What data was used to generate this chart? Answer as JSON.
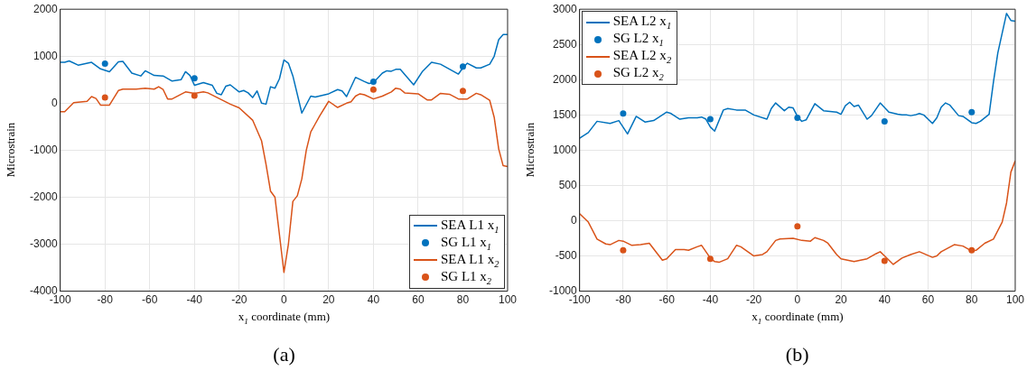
{
  "chart_data": [
    {
      "type": "line",
      "xlabel": "x$_{1}$ coordinate (mm)",
      "ylabel": "Microstrain",
      "annotations": [
        "(a)"
      ],
      "xlim": [
        -100,
        100
      ],
      "xticks": [
        -100,
        -80,
        -60,
        -40,
        -20,
        0,
        20,
        40,
        60,
        80,
        100
      ],
      "ylim": [
        -4000,
        2000
      ],
      "yticks": [
        -4000,
        -3000,
        -2000,
        -1000,
        0,
        1000,
        2000
      ],
      "grid": true,
      "legend": "bottom right",
      "series": [
        {
          "name": "SEA L1 x$_{1}$",
          "color": "#0072bd",
          "x": [
            -100,
            -98,
            -96,
            -92,
            -86,
            -82,
            -78,
            -74,
            -72,
            -68,
            -64,
            -62,
            -58,
            -54,
            -50,
            -46,
            -44,
            -42,
            -40,
            -36,
            -32,
            -30,
            -28,
            -26,
            -24,
            -20,
            -18,
            -16,
            -14,
            -12,
            -10,
            -8,
            -6,
            -4,
            -2,
            0,
            2,
            4,
            8,
            12,
            14,
            20,
            24,
            26,
            28,
            32,
            36,
            38,
            40,
            44,
            46,
            48,
            50,
            52,
            58,
            62,
            66,
            70,
            78,
            80,
            82,
            86,
            88,
            92,
            94,
            96,
            98,
            100
          ],
          "values": [
            870,
            870,
            900,
            810,
            870,
            730,
            670,
            880,
            890,
            640,
            580,
            690,
            590,
            580,
            470,
            500,
            670,
            590,
            380,
            440,
            380,
            210,
            180,
            360,
            390,
            240,
            270,
            220,
            120,
            260,
            0,
            -20,
            350,
            320,
            520,
            920,
            850,
            580,
            -210,
            150,
            130,
            200,
            290,
            260,
            140,
            550,
            460,
            420,
            440,
            640,
            690,
            680,
            720,
            720,
            390,
            680,
            870,
            830,
            620,
            750,
            850,
            750,
            750,
            830,
            1000,
            1350,
            1460,
            1460
          ]
        },
        {
          "type": "scatter",
          "name": "SG L1 x$_{1}$",
          "color": "#0072bd",
          "marker": "circle",
          "x": [
            -80,
            -40,
            40,
            80
          ],
          "values": [
            840,
            530,
            460,
            780
          ]
        },
        {
          "name": "SEA L1 x$_{2}$",
          "color": "#d95319",
          "x": [
            -100,
            -98,
            -94,
            -88,
            -86,
            -84,
            -82,
            -78,
            -74,
            -72,
            -66,
            -62,
            -58,
            -56,
            -54,
            -52,
            -50,
            -44,
            -40,
            -36,
            -34,
            -24,
            -20,
            -14,
            -10,
            -8,
            -6,
            -4,
            0,
            2,
            4,
            6,
            8,
            10,
            12,
            14,
            16,
            20,
            24,
            28,
            30,
            32,
            34,
            36,
            40,
            44,
            48,
            50,
            52,
            54,
            60,
            64,
            66,
            70,
            74,
            78,
            82,
            86,
            88,
            92,
            94,
            96,
            98,
            100
          ],
          "values": [
            -180,
            -180,
            10,
            40,
            140,
            100,
            -40,
            -40,
            270,
            300,
            300,
            320,
            300,
            350,
            290,
            90,
            90,
            240,
            210,
            240,
            220,
            -20,
            -100,
            -360,
            -800,
            -1300,
            -1870,
            -2000,
            -3600,
            -3000,
            -2090,
            -1970,
            -1610,
            -1000,
            -610,
            -440,
            -270,
            40,
            -90,
            0,
            30,
            150,
            200,
            180,
            90,
            150,
            240,
            320,
            300,
            220,
            200,
            70,
            70,
            210,
            190,
            90,
            90,
            210,
            180,
            60,
            -300,
            -970,
            -1330,
            -1350
          ]
        },
        {
          "type": "scatter",
          "name": "SG L1 x$_{2}$",
          "color": "#d95319",
          "marker": "circle",
          "x": [
            -80,
            -40,
            40,
            80
          ],
          "values": [
            120,
            160,
            290,
            260
          ]
        }
      ]
    },
    {
      "type": "line",
      "xlabel": "x$_{1}$ coordinate (mm)",
      "ylabel": "Microstrain",
      "annotations": [
        "(b)"
      ],
      "xlim": [
        -100,
        100
      ],
      "xticks": [
        -100,
        -80,
        -60,
        -40,
        -20,
        0,
        20,
        40,
        60,
        80,
        100
      ],
      "ylim": [
        -1000,
        3000
      ],
      "yticks": [
        -1000,
        -500,
        0,
        500,
        1000,
        1500,
        2000,
        2500,
        3000
      ],
      "grid": true,
      "legend": "top left",
      "series": [
        {
          "name": "SEA L2 x$_{1}$",
          "color": "#0072bd",
          "x": [
            -100,
            -96,
            -92,
            -86,
            -82,
            -78,
            -74,
            -70,
            -66,
            -60,
            -58,
            -54,
            -50,
            -46,
            -44,
            -42,
            -40,
            -38,
            -34,
            -32,
            -28,
            -24,
            -20,
            -14,
            -12,
            -10,
            -6,
            -4,
            -2,
            0,
            2,
            4,
            8,
            12,
            18,
            20,
            22,
            24,
            26,
            28,
            32,
            34,
            38,
            42,
            46,
            48,
            50,
            52,
            54,
            56,
            58,
            62,
            64,
            66,
            68,
            70,
            74,
            76,
            80,
            82,
            84,
            88,
            90,
            92,
            96,
            98,
            100
          ],
          "values": [
            1170,
            1250,
            1410,
            1380,
            1420,
            1230,
            1480,
            1400,
            1420,
            1540,
            1520,
            1440,
            1460,
            1460,
            1470,
            1440,
            1330,
            1270,
            1570,
            1590,
            1570,
            1570,
            1500,
            1440,
            1590,
            1670,
            1560,
            1610,
            1600,
            1480,
            1410,
            1430,
            1660,
            1560,
            1540,
            1510,
            1630,
            1680,
            1620,
            1640,
            1440,
            1490,
            1670,
            1540,
            1510,
            1500,
            1500,
            1490,
            1500,
            1520,
            1500,
            1380,
            1460,
            1610,
            1670,
            1640,
            1490,
            1480,
            1390,
            1380,
            1410,
            1510,
            1970,
            2380,
            2940,
            2840,
            2830
          ]
        },
        {
          "type": "scatter",
          "name": "SG L2 x$_{1}$",
          "color": "#0072bd",
          "marker": "circle",
          "x": [
            -80,
            -40,
            0,
            40,
            80
          ],
          "values": [
            1520,
            1440,
            1460,
            1410,
            1540
          ]
        },
        {
          "name": "SEA L2 x$_{2}$",
          "color": "#d95319",
          "x": [
            -100,
            -96,
            -92,
            -88,
            -86,
            -82,
            -80,
            -76,
            -72,
            -68,
            -64,
            -62,
            -60,
            -56,
            -52,
            -50,
            -46,
            -44,
            -40,
            -38,
            -36,
            -32,
            -28,
            -26,
            -20,
            -16,
            -14,
            -10,
            -8,
            -2,
            2,
            6,
            8,
            12,
            14,
            18,
            20,
            26,
            32,
            36,
            38,
            40,
            44,
            48,
            52,
            56,
            62,
            64,
            66,
            72,
            76,
            80,
            82,
            86,
            90,
            94,
            96,
            98,
            100
          ],
          "values": [
            100,
            -20,
            -260,
            -330,
            -340,
            -280,
            -290,
            -350,
            -340,
            -320,
            -480,
            -560,
            -540,
            -410,
            -410,
            -420,
            -370,
            -350,
            -530,
            -580,
            -590,
            -540,
            -350,
            -370,
            -500,
            -480,
            -440,
            -280,
            -260,
            -250,
            -280,
            -290,
            -240,
            -280,
            -320,
            -480,
            -540,
            -580,
            -540,
            -470,
            -440,
            -500,
            -620,
            -530,
            -480,
            -440,
            -520,
            -500,
            -440,
            -340,
            -360,
            -430,
            -420,
            -320,
            -260,
            -20,
            250,
            690,
            850
          ]
        },
        {
          "type": "scatter",
          "name": "SG L2 x$_{2}$",
          "color": "#d95319",
          "marker": "circle",
          "x": [
            -80,
            -40,
            0,
            40,
            80
          ],
          "values": [
            -420,
            -540,
            -80,
            -570,
            -420
          ]
        }
      ]
    }
  ]
}
